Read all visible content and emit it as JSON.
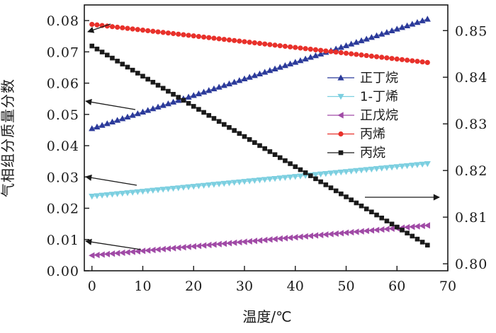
{
  "chart_data": {
    "type": "scatter",
    "xlabel": "温度/℃",
    "ylabel_left": "气相组分质量分数",
    "x_ticks": [
      "0",
      "10",
      "20",
      "30",
      "40",
      "50",
      "60",
      "70"
    ],
    "y_left_ticks": [
      "0.00",
      "0.01",
      "0.02",
      "0.03",
      "0.04",
      "0.05",
      "0.06",
      "0.07",
      "0.08"
    ],
    "y_right_ticks": [
      "0.80",
      "0.81",
      "0.82",
      "0.83",
      "0.84",
      "0.85"
    ],
    "xlim": [
      -1.5,
      70
    ],
    "ylim_left": [
      0.0,
      0.085
    ],
    "ylim_right": [
      0.7985,
      0.8555
    ],
    "x_range": [
      0,
      66
    ],
    "points_per_series": 67,
    "legend_position": "right",
    "series": [
      {
        "name": "正丁烷",
        "axis": "left",
        "start": 0.0455,
        "end": 0.0805,
        "color": "#2b3a9a",
        "marker": "triangle-up"
      },
      {
        "name": "1-丁烯",
        "axis": "left",
        "start": 0.0238,
        "end": 0.0342,
        "color": "#7ccfe0",
        "marker": "triangle-down"
      },
      {
        "name": "正戊烷",
        "axis": "left",
        "start": 0.0049,
        "end": 0.0145,
        "color": "#a04aa6",
        "marker": "triangle-left"
      },
      {
        "name": "丙烯",
        "axis": "left",
        "start": 0.0788,
        "end": 0.0666,
        "color": "#e8312b",
        "marker": "circle"
      },
      {
        "name": "丙烷",
        "axis": "right",
        "start": 0.8467,
        "end": 0.804,
        "color": "#1a1a1a",
        "marker": "square"
      }
    ]
  }
}
